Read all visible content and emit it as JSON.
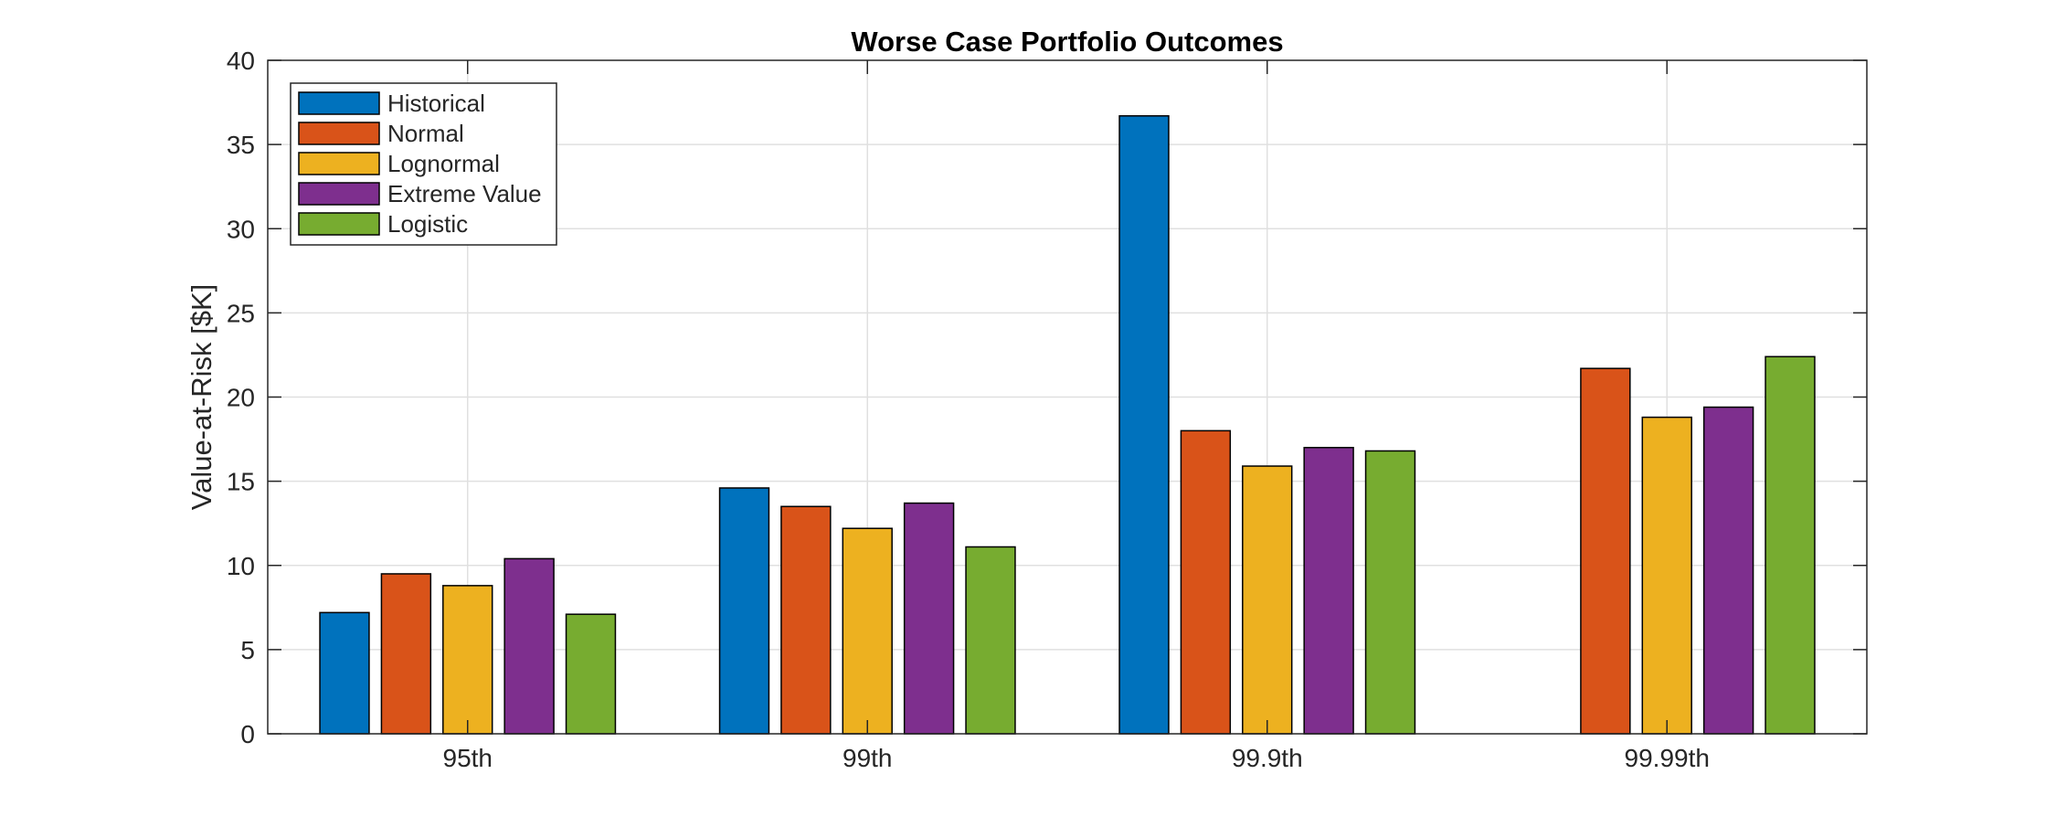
{
  "chart_data": {
    "type": "bar",
    "title": "Worse Case Portfolio Outcomes",
    "xlabel": "",
    "ylabel": "Value-at-Risk [$K]",
    "categories": [
      "95th",
      "99th",
      "99.9th",
      "99.99th"
    ],
    "ylim": [
      0,
      40
    ],
    "yticks": [
      0,
      5,
      10,
      15,
      20,
      25,
      30,
      35,
      40
    ],
    "grid": true,
    "legend_position": "top-left",
    "series": [
      {
        "name": "Historical",
        "color": "#0072BD",
        "values": [
          7.2,
          14.6,
          36.7,
          0
        ]
      },
      {
        "name": "Normal",
        "color": "#D95319",
        "values": [
          9.5,
          13.5,
          18.0,
          21.7
        ]
      },
      {
        "name": "Lognormal",
        "color": "#EDB120",
        "values": [
          8.8,
          12.2,
          15.9,
          18.8
        ]
      },
      {
        "name": "Extreme Value",
        "color": "#7E2F8E",
        "values": [
          10.4,
          13.7,
          17.0,
          19.4
        ]
      },
      {
        "name": "Logistic",
        "color": "#77AC30",
        "values": [
          7.1,
          11.1,
          16.8,
          22.4
        ]
      }
    ]
  }
}
